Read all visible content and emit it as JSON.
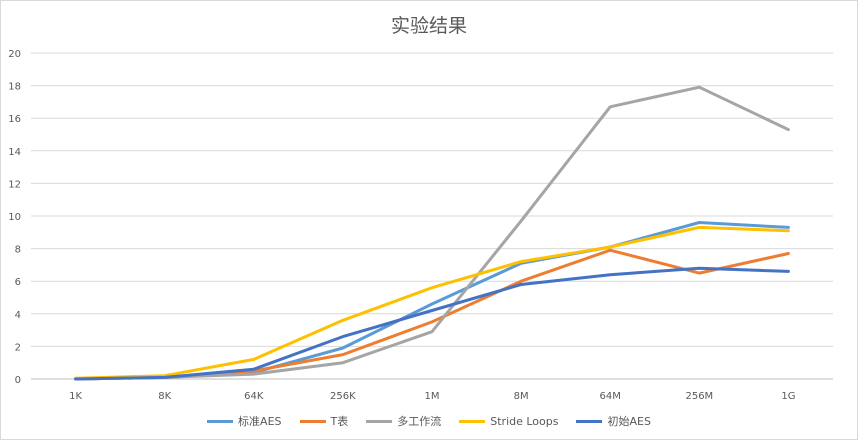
{
  "chart_data": {
    "type": "line",
    "title": "实验结果",
    "categories": [
      "1K",
      "8K",
      "64K",
      "256K",
      "1M",
      "8M",
      "64M",
      "256M",
      "1G"
    ],
    "ylim": [
      0,
      20
    ],
    "yticks": [
      0,
      2,
      4,
      6,
      8,
      10,
      12,
      14,
      16,
      18,
      20
    ],
    "grid": true,
    "legend_position": "bottom",
    "series": [
      {
        "name": "标准AES",
        "color": "#5b9bd5",
        "values": [
          0.0,
          0.1,
          0.4,
          1.9,
          4.6,
          7.1,
          8.1,
          9.6,
          9.3
        ]
      },
      {
        "name": "T表",
        "color": "#ed7d31",
        "values": [
          0.0,
          0.1,
          0.5,
          1.5,
          3.5,
          6.0,
          7.9,
          6.5,
          7.7
        ]
      },
      {
        "name": "多工作流",
        "color": "#a5a5a5",
        "values": [
          0.0,
          0.1,
          0.3,
          1.0,
          2.9,
          9.7,
          16.7,
          17.9,
          15.3
        ]
      },
      {
        "name": "Stride Loops",
        "color": "#ffc000",
        "values": [
          0.05,
          0.2,
          1.2,
          3.6,
          5.6,
          7.2,
          8.1,
          9.3,
          9.1
        ]
      },
      {
        "name": "初始AES",
        "color": "#4472c4",
        "values": [
          0.0,
          0.1,
          0.6,
          2.6,
          4.2,
          5.8,
          6.4,
          6.8,
          6.6
        ]
      }
    ]
  }
}
